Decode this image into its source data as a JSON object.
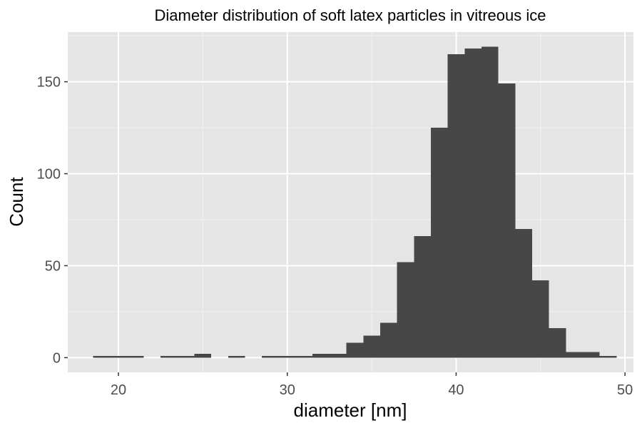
{
  "chart_data": {
    "type": "bar",
    "title": "Diameter distribution of soft latex particles in vitreous ice",
    "xlabel": "diameter [nm]",
    "ylabel": "Count",
    "xlim": [
      17,
      50.5
    ],
    "ylim": [
      -8,
      177
    ],
    "x_ticks": [
      20,
      30,
      40,
      50
    ],
    "y_ticks": [
      0,
      50,
      100,
      150
    ],
    "grid": true,
    "bin_width": 1,
    "bins": [
      {
        "x": 19,
        "count": 1
      },
      {
        "x": 20,
        "count": 1
      },
      {
        "x": 21,
        "count": 1
      },
      {
        "x": 22,
        "count": 0
      },
      {
        "x": 23,
        "count": 1
      },
      {
        "x": 24,
        "count": 1
      },
      {
        "x": 25,
        "count": 2
      },
      {
        "x": 26,
        "count": 0
      },
      {
        "x": 27,
        "count": 1
      },
      {
        "x": 28,
        "count": 0
      },
      {
        "x": 29,
        "count": 1
      },
      {
        "x": 30,
        "count": 1
      },
      {
        "x": 31,
        "count": 1
      },
      {
        "x": 32,
        "count": 2
      },
      {
        "x": 33,
        "count": 2
      },
      {
        "x": 34,
        "count": 8
      },
      {
        "x": 35,
        "count": 12
      },
      {
        "x": 36,
        "count": 19
      },
      {
        "x": 37,
        "count": 52
      },
      {
        "x": 38,
        "count": 66
      },
      {
        "x": 39,
        "count": 125
      },
      {
        "x": 40,
        "count": 165
      },
      {
        "x": 41,
        "count": 168
      },
      {
        "x": 42,
        "count": 169
      },
      {
        "x": 43,
        "count": 149
      },
      {
        "x": 44,
        "count": 70
      },
      {
        "x": 45,
        "count": 42
      },
      {
        "x": 46,
        "count": 16
      },
      {
        "x": 47,
        "count": 3
      },
      {
        "x": 48,
        "count": 3
      },
      {
        "x": 49,
        "count": 1
      }
    ],
    "colors": {
      "panel": "#e5e5e5",
      "grid_major": "#ffffff",
      "grid_minor": "#f2f2f2",
      "bar": "#474747",
      "tick_text": "#4d4d4d",
      "axis_text": "#000000"
    }
  }
}
